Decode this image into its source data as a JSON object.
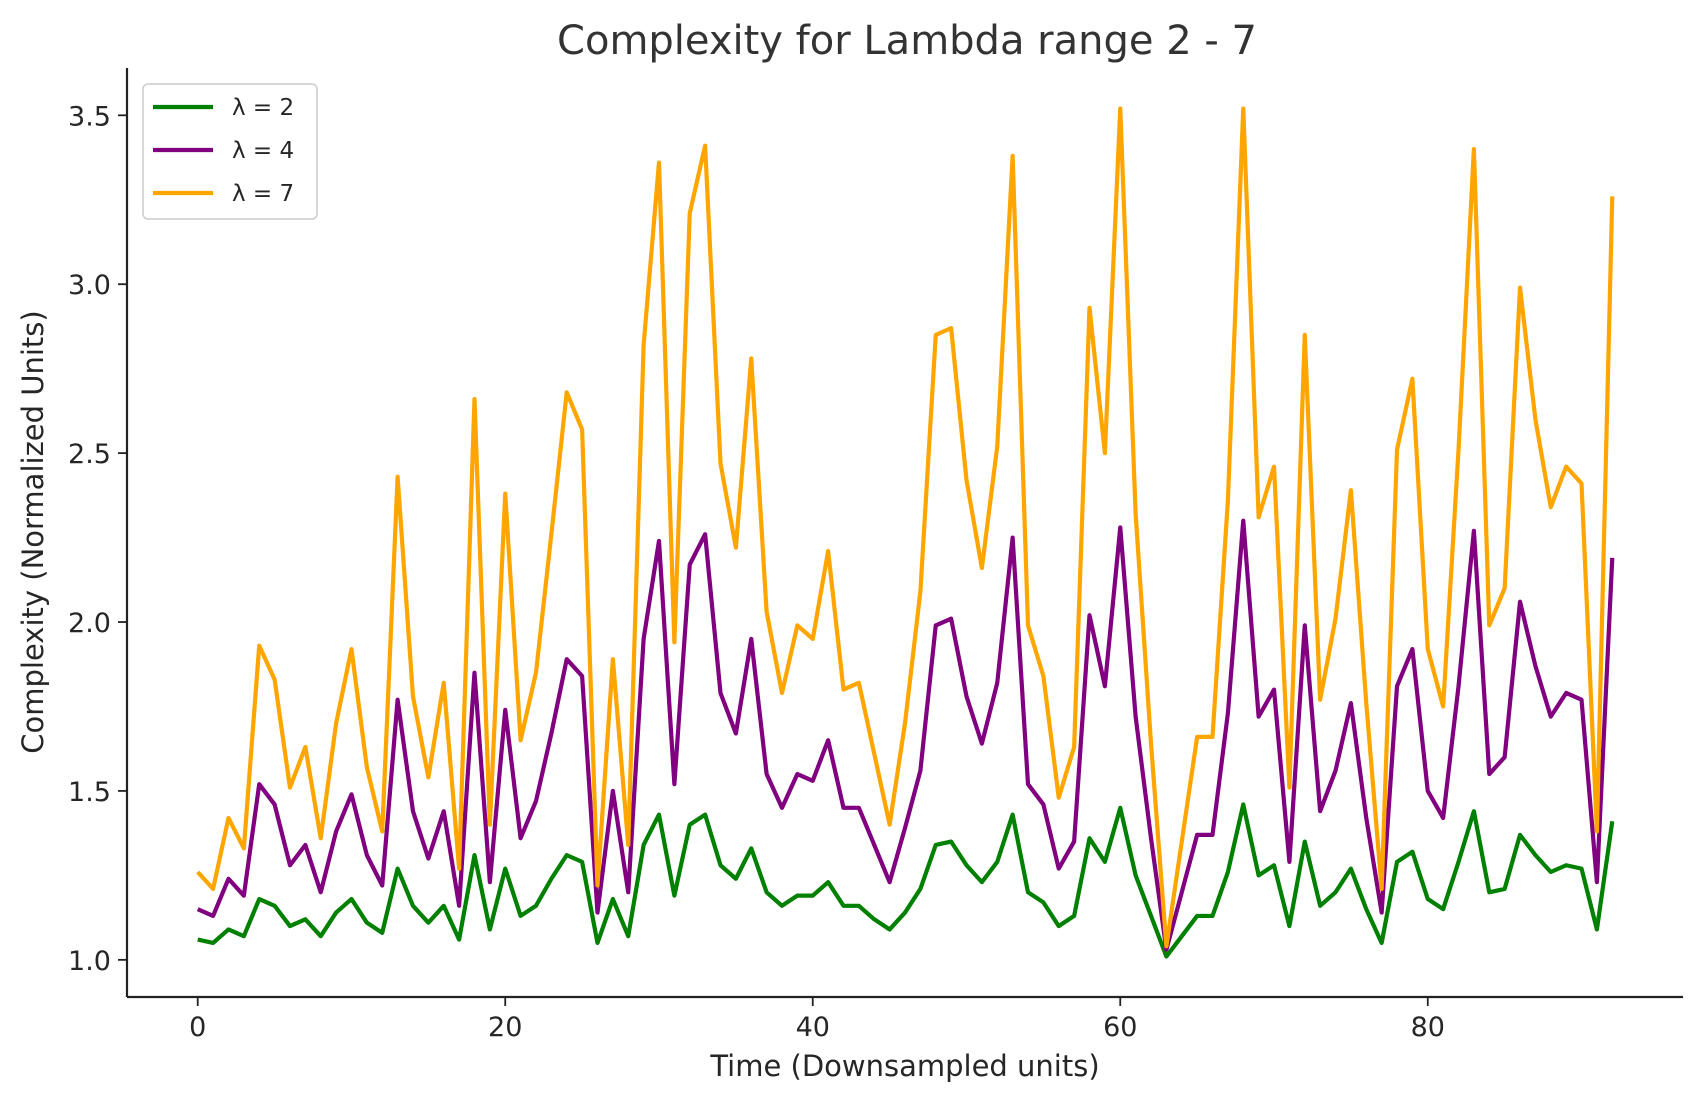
{
  "chart_data": {
    "type": "line",
    "title": "Complexity for Lambda range 2 - 7",
    "xlabel": "Time (Downsampled units)",
    "ylabel": "Complexity (Normalized Units)",
    "xlim": [
      -4.6,
      96.6
    ],
    "ylim": [
      0.89,
      3.64
    ],
    "xticks": [
      0,
      20,
      40,
      60,
      80
    ],
    "yticks": [
      1.0,
      1.5,
      2.0,
      2.5,
      3.0,
      3.5
    ],
    "ytick_labels": [
      "1.0",
      "1.5",
      "2.0",
      "2.5",
      "3.0",
      "3.5"
    ],
    "grid": false,
    "legend_position": "top-left",
    "series": [
      {
        "name": "λ = 2",
        "color": "#008000",
        "values": [
          1.06,
          1.05,
          1.09,
          1.07,
          1.18,
          1.16,
          1.1,
          1.12,
          1.07,
          1.14,
          1.18,
          1.11,
          1.08,
          1.27,
          1.16,
          1.11,
          1.16,
          1.06,
          1.31,
          1.09,
          1.27,
          1.13,
          1.16,
          1.24,
          1.31,
          1.29,
          1.05,
          1.18,
          1.07,
          1.34,
          1.43,
          1.19,
          1.4,
          1.43,
          1.28,
          1.24,
          1.33,
          1.2,
          1.16,
          1.19,
          1.19,
          1.23,
          1.16,
          1.16,
          1.12,
          1.09,
          1.14,
          1.21,
          1.34,
          1.35,
          1.28,
          1.23,
          1.29,
          1.43,
          1.2,
          1.17,
          1.1,
          1.13,
          1.36,
          1.29,
          1.45,
          1.25,
          1.13,
          1.01,
          1.07,
          1.13,
          1.13,
          1.26,
          1.46,
          1.25,
          1.28,
          1.1,
          1.35,
          1.16,
          1.2,
          1.27,
          1.15,
          1.05,
          1.29,
          1.32,
          1.18,
          1.15,
          1.29,
          1.44,
          1.2,
          1.21,
          1.37,
          1.31,
          1.26,
          1.28,
          1.27,
          1.09,
          1.41
        ]
      },
      {
        "name": "λ = 4",
        "color": "#800080",
        "values": [
          1.15,
          1.13,
          1.24,
          1.19,
          1.52,
          1.46,
          1.28,
          1.34,
          1.2,
          1.38,
          1.49,
          1.31,
          1.22,
          1.77,
          1.44,
          1.3,
          1.44,
          1.16,
          1.85,
          1.23,
          1.74,
          1.36,
          1.47,
          1.67,
          1.89,
          1.84,
          1.14,
          1.5,
          1.2,
          1.95,
          2.24,
          1.52,
          2.17,
          2.26,
          1.79,
          1.67,
          1.95,
          1.55,
          1.45,
          1.55,
          1.53,
          1.65,
          1.45,
          1.45,
          1.34,
          1.23,
          1.39,
          1.56,
          1.99,
          2.01,
          1.78,
          1.64,
          1.82,
          2.25,
          1.52,
          1.46,
          1.27,
          1.35,
          2.02,
          1.81,
          2.28,
          1.72,
          1.36,
          1.03,
          1.2,
          1.37,
          1.37,
          1.73,
          2.3,
          1.72,
          1.8,
          1.29,
          1.99,
          1.44,
          1.56,
          1.76,
          1.42,
          1.14,
          1.81,
          1.92,
          1.5,
          1.42,
          1.81,
          2.27,
          1.55,
          1.6,
          2.06,
          1.87,
          1.72,
          1.79,
          1.77,
          1.23,
          2.19
        ]
      },
      {
        "name": "λ = 7",
        "color": "#FFA500",
        "values": [
          1.26,
          1.21,
          1.42,
          1.33,
          1.93,
          1.83,
          1.51,
          1.63,
          1.36,
          1.7,
          1.92,
          1.57,
          1.38,
          2.43,
          1.78,
          1.54,
          1.82,
          1.27,
          2.66,
          1.4,
          2.38,
          1.65,
          1.85,
          2.26,
          2.68,
          2.57,
          1.22,
          1.89,
          1.34,
          2.82,
          3.36,
          1.94,
          3.21,
          3.41,
          2.47,
          2.22,
          2.78,
          2.03,
          1.79,
          1.99,
          1.95,
          2.21,
          1.8,
          1.82,
          1.61,
          1.4,
          1.7,
          2.09,
          2.85,
          2.87,
          2.42,
          2.16,
          2.52,
          3.38,
          1.99,
          1.84,
          1.48,
          1.63,
          2.93,
          2.5,
          3.52,
          2.32,
          1.64,
          1.04,
          1.35,
          1.66,
          1.66,
          2.36,
          3.52,
          2.31,
          2.46,
          1.51,
          2.85,
          1.77,
          2.01,
          2.39,
          1.76,
          1.21,
          2.51,
          2.72,
          1.92,
          1.75,
          2.51,
          3.4,
          1.99,
          2.1,
          2.99,
          2.6,
          2.34,
          2.46,
          2.41,
          1.38,
          3.26
        ]
      }
    ]
  }
}
